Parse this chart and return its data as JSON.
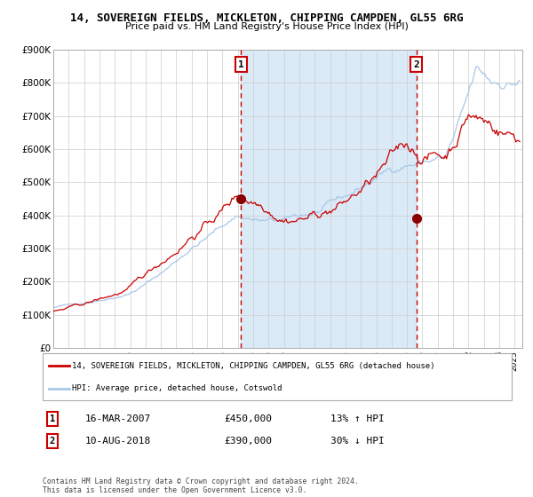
{
  "title1": "14, SOVEREIGN FIELDS, MICKLETON, CHIPPING CAMPDEN, GL55 6RG",
  "title2": "Price paid vs. HM Land Registry's House Price Index (HPI)",
  "legend_red": "14, SOVEREIGN FIELDS, MICKLETON, CHIPPING CAMPDEN, GL55 6RG (detached house)",
  "legend_blue": "HPI: Average price, detached house, Cotswold",
  "annotation1_date": "16-MAR-2007",
  "annotation1_price": "£450,000",
  "annotation1_hpi": "13% ↑ HPI",
  "annotation2_date": "10-AUG-2018",
  "annotation2_price": "£390,000",
  "annotation2_hpi": "30% ↓ HPI",
  "date1_x": 2007.21,
  "date2_x": 2018.61,
  "date1_y": 450000,
  "date2_y": 390000,
  "ylim": [
    0,
    900000
  ],
  "xlim_start": 1995.0,
  "xlim_end": 2025.5,
  "red_color": "#cc0000",
  "blue_color": "#a8c8e8",
  "shading_color": "#daeaf7",
  "grid_color": "#cccccc",
  "background_color": "#ffffff",
  "footer": "Contains HM Land Registry data © Crown copyright and database right 2024.\nThis data is licensed under the Open Government Licence v3.0.",
  "yticks": [
    0,
    100000,
    200000,
    300000,
    400000,
    500000,
    600000,
    700000,
    800000,
    900000
  ],
  "ytick_labels": [
    "£0",
    "£100K",
    "£200K",
    "£300K",
    "£400K",
    "£500K",
    "£600K",
    "£700K",
    "£800K",
    "£900K"
  ]
}
